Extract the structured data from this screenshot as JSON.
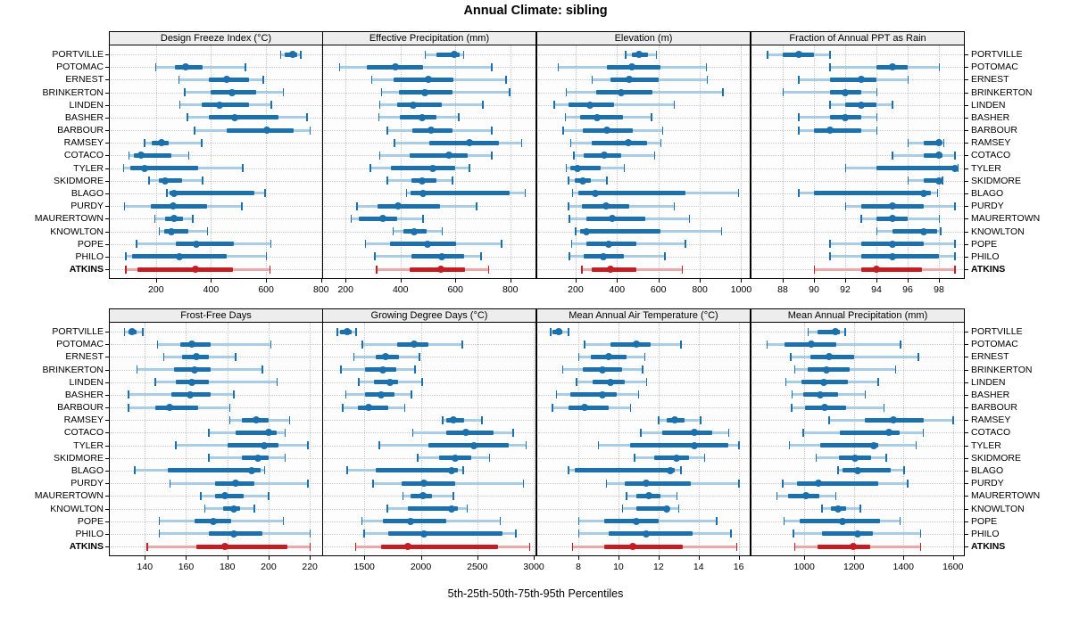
{
  "title": "Annual Climate: sibling",
  "caption": "5th-25th-50th-75th-95th Percentiles",
  "colors": {
    "normal_dark": "#1c70ac",
    "normal_light": "#a9cde5",
    "highlight_dark": "#c41e25",
    "highlight_light": "#e9a8aa",
    "gridline": "#c8c8c8",
    "strip_bg": "#ededed",
    "panel_border": "#000000"
  },
  "stations": [
    "PORTVILLE",
    "POTOMAC",
    "ERNEST",
    "BRINKERTON",
    "LINDEN",
    "BASHER",
    "BARBOUR",
    "RAMSEY",
    "COTACO",
    "TYLER",
    "SKIDMORE",
    "BLAGO",
    "PURDY",
    "MAURERTOWN",
    "KNOWLTON",
    "POPE",
    "PHILO",
    "ATKINS"
  ],
  "highlight_station": "ATKINS",
  "chart_data": {
    "type": "dotplot-percentiles",
    "percentiles": [
      5,
      25,
      50,
      75,
      95
    ],
    "title": "Annual Climate: sibling",
    "xlabel": "5th-25th-50th-75th-95th Percentiles",
    "grid_layout": "2 rows x 4 columns, shared station rows, legend none, dotted grid on",
    "panels": [
      {
        "title": "Design Freeze Index (°C)",
        "domain": [
          32,
          804
        ],
        "ticks": [
          200,
          400,
          600,
          800
        ],
        "values": [
          [
            653,
            667,
            696,
            713,
            726
          ],
          [
            198,
            268,
            308,
            370,
            524
          ],
          [
            282,
            392,
            457,
            538,
            589
          ],
          [
            304,
            397,
            476,
            565,
            662
          ],
          [
            286,
            365,
            430,
            538,
            619
          ],
          [
            314,
            392,
            487,
            646,
            748
          ],
          [
            340,
            457,
            602,
            700,
            760
          ],
          [
            157,
            185,
            219,
            246,
            365
          ],
          [
            101,
            120,
            147,
            257,
            319
          ],
          [
            82,
            108,
            157,
            352,
            514
          ],
          [
            174,
            209,
            233,
            295,
            368
          ],
          [
            239,
            249,
            265,
            559,
            595
          ],
          [
            85,
            182,
            263,
            387,
            511
          ],
          [
            195,
            232,
            265,
            298,
            333
          ],
          [
            212,
            230,
            255,
            319,
            387
          ],
          [
            128,
            273,
            346,
            484,
            616
          ],
          [
            90,
            112,
            284,
            457,
            600
          ],
          [
            90,
            133,
            343,
            480,
            613
          ]
        ]
      },
      {
        "title": "Effective Precipitation (mm)",
        "domain": [
          118,
          892
        ],
        "ticks": [
          200,
          400,
          600,
          800
        ],
        "values": [
          [
            490,
            530,
            595,
            615,
            630
          ],
          [
            177,
            276,
            380,
            483,
            732
          ],
          [
            294,
            375,
            503,
            594,
            784
          ],
          [
            330,
            395,
            489,
            589,
            797
          ],
          [
            323,
            389,
            445,
            551,
            700
          ],
          [
            320,
            397,
            480,
            532,
            611
          ],
          [
            351,
            443,
            510,
            591,
            732
          ],
          [
            377,
            505,
            650,
            760,
            840
          ],
          [
            323,
            432,
            578,
            645,
            732
          ],
          [
            289,
            364,
            519,
            599,
            650
          ],
          [
            352,
            441,
            479,
            532,
            589
          ],
          [
            422,
            436,
            481,
            798,
            854
          ],
          [
            241,
            318,
            391,
            545,
            677
          ],
          [
            219,
            248,
            336,
            388,
            481
          ],
          [
            372,
            412,
            450,
            495,
            552
          ],
          [
            272,
            363,
            498,
            604,
            768
          ],
          [
            305,
            441,
            551,
            631,
            693
          ],
          [
            313,
            433,
            546,
            636,
            720
          ]
        ]
      },
      {
        "title": "Elevation (m)",
        "domain": [
          15,
          1041
        ],
        "ticks": [
          200,
          400,
          600,
          800,
          1000
        ],
        "values": [
          [
            440,
            470,
            505,
            550,
            590
          ],
          [
            115,
            350,
            470,
            610,
            830
          ],
          [
            280,
            370,
            460,
            600,
            835
          ],
          [
            155,
            300,
            420,
            570,
            910
          ],
          [
            95,
            165,
            270,
            385,
            675
          ],
          [
            150,
            220,
            305,
            430,
            565
          ],
          [
            140,
            235,
            350,
            475,
            620
          ],
          [
            175,
            280,
            455,
            545,
            610
          ],
          [
            190,
            240,
            340,
            420,
            580
          ],
          [
            155,
            175,
            210,
            320,
            435
          ],
          [
            165,
            195,
            235,
            275,
            350
          ],
          [
            185,
            215,
            295,
            730,
            985
          ],
          [
            165,
            230,
            345,
            460,
            675
          ],
          [
            170,
            250,
            375,
            535,
            750
          ],
          [
            200,
            220,
            250,
            610,
            905
          ],
          [
            180,
            250,
            360,
            495,
            730
          ],
          [
            170,
            240,
            335,
            435,
            630
          ],
          [
            230,
            280,
            370,
            495,
            715
          ]
        ]
      },
      {
        "title": "Fraction of Annual PPT as Rain",
        "domain": [
          86,
          99.6
        ],
        "ticks": [
          88,
          90,
          92,
          94,
          96,
          98
        ],
        "values": [
          [
            87,
            88,
            89,
            90,
            91
          ],
          [
            91,
            94,
            95,
            96,
            98
          ],
          [
            89,
            91,
            93,
            94,
            96
          ],
          [
            88,
            91,
            92,
            93,
            94
          ],
          [
            91,
            92,
            93,
            94,
            95
          ],
          [
            89,
            91,
            92,
            93,
            94
          ],
          [
            89,
            90,
            91,
            93,
            94
          ],
          [
            96,
            97,
            98,
            98.1,
            98.3
          ],
          [
            95,
            97,
            98,
            98.2,
            99
          ],
          [
            92,
            94,
            99,
            99.1,
            99.2
          ],
          [
            96,
            97,
            98,
            98.1,
            98.2
          ],
          [
            89,
            90,
            97,
            97.5,
            97.9
          ],
          [
            92,
            93,
            95,
            97,
            99
          ],
          [
            93,
            94,
            95,
            96,
            98
          ],
          [
            94,
            95,
            97,
            97.9,
            98.1
          ],
          [
            91,
            93,
            95,
            97,
            99
          ],
          [
            91,
            93,
            95,
            98,
            99
          ],
          [
            90,
            93,
            94,
            96.9,
            99
          ]
        ]
      },
      {
        "title": "Frost-Free Days",
        "domain": [
          123,
          226
        ],
        "ticks": [
          140,
          160,
          180,
          200,
          220
        ],
        "values": [
          [
            130,
            132,
            134,
            136,
            139
          ],
          [
            146,
            157,
            163,
            172,
            201
          ],
          [
            149,
            158,
            165,
            171,
            184
          ],
          [
            136,
            154,
            164,
            172,
            197
          ],
          [
            145,
            155,
            163,
            171,
            204
          ],
          [
            132,
            153,
            162,
            172,
            183
          ],
          [
            132,
            145,
            152,
            166,
            181
          ],
          [
            181,
            187,
            194,
            200,
            210
          ],
          [
            171,
            184,
            200,
            204,
            208
          ],
          [
            155,
            180,
            198,
            205,
            219
          ],
          [
            171,
            187,
            195,
            200,
            208
          ],
          [
            135,
            151,
            192,
            196,
            198
          ],
          [
            152,
            174,
            184,
            193,
            219
          ],
          [
            167,
            174,
            179,
            188,
            200
          ],
          [
            169,
            178,
            183,
            186,
            193
          ],
          [
            147,
            164,
            173,
            182,
            207
          ],
          [
            147,
            171,
            183,
            197,
            220
          ],
          [
            141,
            165,
            179,
            209,
            220
          ]
        ]
      },
      {
        "title": "Growing Degree Days (°C)",
        "domain": [
          1135,
          3015
        ],
        "ticks": [
          1500,
          2000,
          2500,
          3000
        ],
        "values": [
          [
            1260,
            1285,
            1350,
            1385,
            1425
          ],
          [
            1480,
            1790,
            1940,
            2070,
            2365
          ],
          [
            1405,
            1600,
            1690,
            1810,
            1985
          ],
          [
            1290,
            1505,
            1665,
            1785,
            1945
          ],
          [
            1450,
            1585,
            1725,
            1795,
            2010
          ],
          [
            1335,
            1510,
            1650,
            1770,
            1915
          ],
          [
            1305,
            1445,
            1535,
            1710,
            1855
          ],
          [
            2190,
            2225,
            2290,
            2385,
            2540
          ],
          [
            1925,
            2225,
            2400,
            2645,
            2815
          ],
          [
            1630,
            2065,
            2470,
            2775,
            2930
          ],
          [
            1970,
            2160,
            2305,
            2450,
            2605
          ],
          [
            1345,
            1600,
            2270,
            2330,
            2375
          ],
          [
            1575,
            1830,
            2025,
            2305,
            2905
          ],
          [
            1840,
            1910,
            2020,
            2100,
            2285
          ],
          [
            1700,
            1885,
            2275,
            2330,
            2410
          ],
          [
            1475,
            1665,
            1910,
            2225,
            2700
          ],
          [
            1495,
            1715,
            2025,
            2725,
            2840
          ],
          [
            1420,
            1650,
            1885,
            2685,
            2960
          ]
        ]
      },
      {
        "title": "Mean Annual Air Temperature (°C)",
        "domain": [
          5.95,
          16.55
        ],
        "ticks": [
          8,
          10,
          12,
          14,
          16
        ],
        "values": [
          [
            6.6,
            6.7,
            7.0,
            7.2,
            7.5
          ],
          [
            8.3,
            9.6,
            10.9,
            11.6,
            13.1
          ],
          [
            8.0,
            8.6,
            9.5,
            10.4,
            11.3
          ],
          [
            7.2,
            8.2,
            9.2,
            10.2,
            11.2
          ],
          [
            7.9,
            8.7,
            9.6,
            10.3,
            11.4
          ],
          [
            6.9,
            7.6,
            9.2,
            9.9,
            11.0
          ],
          [
            6.7,
            7.5,
            8.3,
            9.5,
            10.6
          ],
          [
            12.0,
            12.4,
            12.8,
            13.3,
            14.1
          ],
          [
            11.1,
            12.2,
            13.8,
            14.7,
            15.5
          ],
          [
            9.0,
            10.6,
            13.8,
            15.5,
            16.0
          ],
          [
            10.8,
            11.8,
            12.9,
            13.5,
            14.3
          ],
          [
            7.5,
            7.8,
            12.6,
            12.8,
            13.1
          ],
          [
            9.4,
            10.3,
            11.4,
            13.6,
            16.0
          ],
          [
            10.4,
            10.9,
            11.5,
            12.1,
            12.9
          ],
          [
            10.2,
            10.9,
            12.4,
            12.5,
            13.0
          ],
          [
            8.0,
            9.3,
            10.9,
            12.0,
            14.9
          ],
          [
            8.0,
            9.5,
            11.4,
            13.7,
            15.6
          ],
          [
            7.7,
            9.3,
            10.7,
            13.2,
            15.9
          ]
        ]
      },
      {
        "title": "Mean Annual Precipitation (mm)",
        "domain": [
          787,
          1644
        ],
        "ticks": [
          1000,
          1200,
          1400,
          1600
        ],
        "values": [
          [
            1015,
            1055,
            1125,
            1143,
            1164
          ],
          [
            850,
            920,
            1027,
            1130,
            1388
          ],
          [
            944,
            1024,
            1099,
            1202,
            1460
          ],
          [
            960,
            1015,
            1090,
            1182,
            1367
          ],
          [
            924,
            988,
            1079,
            1176,
            1298
          ],
          [
            950,
            995,
            1063,
            1138,
            1245
          ],
          [
            948,
            1004,
            1081,
            1167,
            1321
          ],
          [
            1099,
            1245,
            1361,
            1483,
            1600
          ],
          [
            995,
            1143,
            1340,
            1385,
            1480
          ],
          [
            940,
            1065,
            1280,
            1300,
            1450
          ],
          [
            1048,
            1140,
            1206,
            1269,
            1329
          ],
          [
            1135,
            1155,
            1214,
            1349,
            1402
          ],
          [
            912,
            971,
            1057,
            1298,
            1417
          ],
          [
            888,
            936,
            1007,
            1060,
            1126
          ],
          [
            1071,
            1107,
            1138,
            1167,
            1226
          ],
          [
            917,
            980,
            1155,
            1305,
            1385
          ],
          [
            956,
            1071,
            1214,
            1277,
            1468
          ],
          [
            960,
            1055,
            1198,
            1265,
            1468
          ]
        ]
      }
    ]
  }
}
